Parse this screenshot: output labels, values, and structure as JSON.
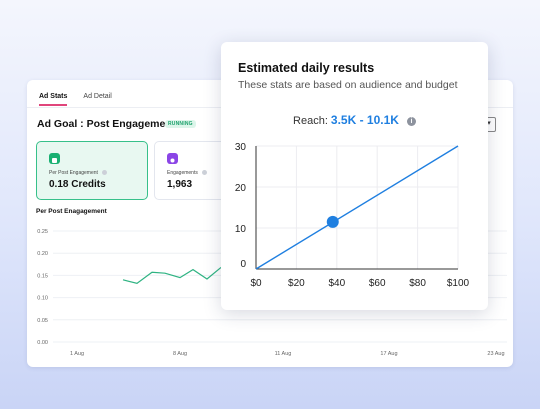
{
  "tabs": [
    {
      "label": "Ad Stats",
      "active": true
    },
    {
      "label": "Ad Detail",
      "active": false
    }
  ],
  "goal": {
    "title": "Ad Goal : Post Engagement",
    "status": "RUNNING"
  },
  "stats": [
    {
      "label": "Per Post Engagement",
      "value": "0.18 Credits",
      "icon": "credit-icon",
      "accent": "#19b072"
    },
    {
      "label": "Engagements",
      "value": "1,963",
      "icon": "engagement-icon",
      "accent": "#8b45e6"
    }
  ],
  "bg_chart": {
    "title": "Per Post Enagagement",
    "y_ticks": [
      "0.25",
      "0.20",
      "0.15",
      "0.10",
      "0.05",
      "0.00"
    ],
    "x_ticks": [
      "1 Aug",
      "8 Aug",
      "11 Aug",
      "17 Aug",
      "23 Aug"
    ],
    "ylim": [
      0,
      0.25
    ],
    "line_color": "#2eb382",
    "values": [
      {
        "x": "~2 Aug",
        "y": 0.14
      },
      {
        "x": "~3 Aug",
        "y": 0.132
      },
      {
        "x": "~4 Aug",
        "y": 0.157
      },
      {
        "x": "~5 Aug",
        "y": 0.155
      },
      {
        "x": "~6 Aug",
        "y": 0.145
      },
      {
        "x": "~7 Aug",
        "y": 0.163
      },
      {
        "x": "~8 Aug",
        "y": 0.142
      },
      {
        "x": "~9 Aug",
        "y": 0.168
      }
    ]
  },
  "popup": {
    "title": "Estimated daily results",
    "subtitle": "These stats are based on audience and budget",
    "reach_label": "Reach:",
    "reach_value": "3.5K - 10.1K"
  },
  "chart_data": {
    "type": "line",
    "x": [
      0,
      100
    ],
    "values": [
      0,
      30
    ],
    "marker": {
      "x": 38,
      "y": 11.5
    },
    "y_ticks": [
      "30",
      "20",
      "10",
      "0"
    ],
    "x_ticks": [
      "$0",
      "$20",
      "$40",
      "$60",
      "$80",
      "$100"
    ],
    "xlim": [
      0,
      100
    ],
    "ylim": [
      0,
      30
    ],
    "grid": true,
    "line_color": "#1f7fe0",
    "title": "",
    "xlabel": "",
    "ylabel": ""
  }
}
